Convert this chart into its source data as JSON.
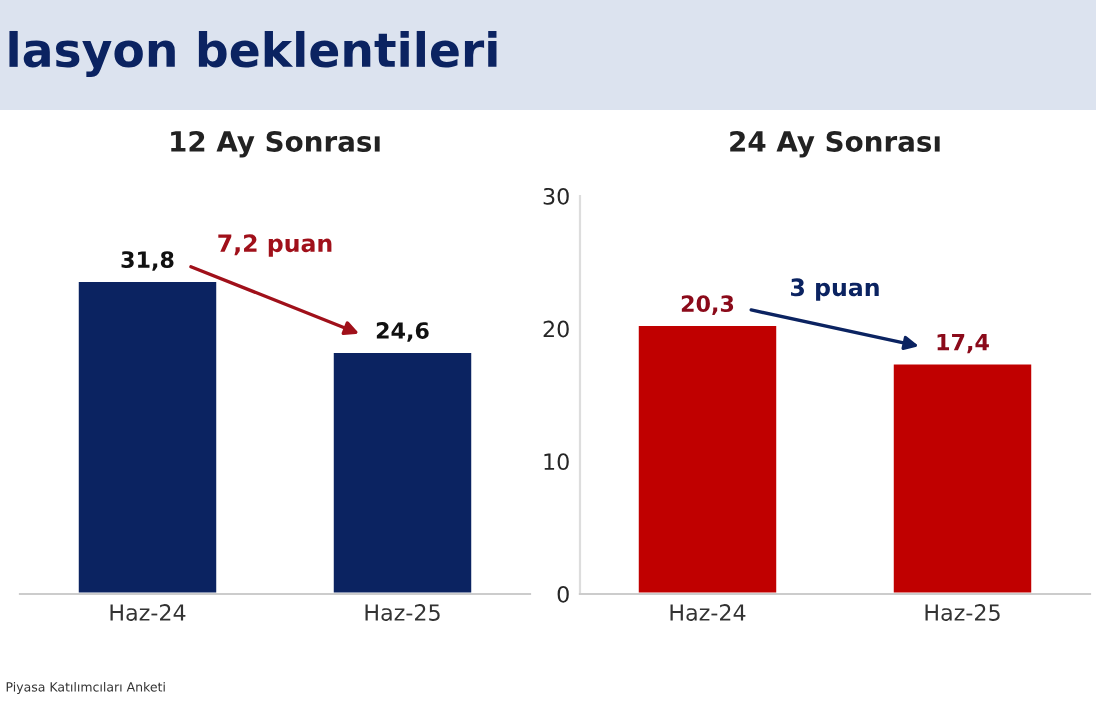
{
  "chart_data": [
    {
      "type": "bar",
      "title": "12 Ay Sonrası",
      "categories": [
        "Haz-24",
        "Haz-25"
      ],
      "values": [
        31.8,
        24.6
      ],
      "colors": [
        "#0b2361",
        "#0b2361"
      ],
      "value_labels": [
        "31,8",
        "24,6"
      ],
      "tick_labels": "x",
      "grid": false,
      "legend": false,
      "annotations": [
        "lasyon beklentileri",
        "7,2 puan",
        "Piyasa Katılımcıları Anketi"
      ]
    },
    {
      "type": "bar",
      "title": "24 Ay Sonrası",
      "categories": [
        "Haz-24",
        "Haz-25"
      ],
      "values": [
        20.3,
        17.4
      ],
      "colors": [
        "#c00000",
        "#c00000"
      ],
      "value_labels": [
        "20,3",
        "17,4"
      ],
      "ylim": [
        0,
        30
      ],
      "yticks": [
        0,
        10,
        20,
        30
      ],
      "grid": false,
      "legend": false,
      "annotations": [
        "3 puan"
      ]
    }
  ]
}
